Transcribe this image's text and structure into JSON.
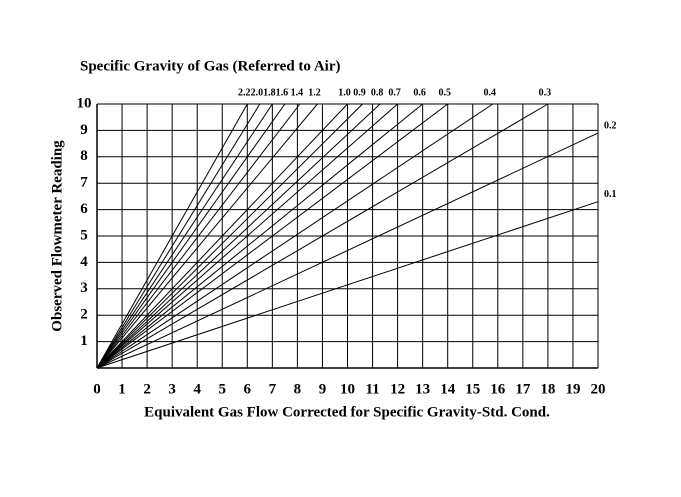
{
  "chart_data": {
    "type": "line",
    "title": "Specific Gravity of Gas (Referred to Air)",
    "x_label": "Equivalent Gas Flow Corrected for Specific Gravity-Std. Cond.",
    "y_label": "Observed Flowmeter Reading",
    "xlim": [
      0,
      20
    ],
    "ylim": [
      0,
      10
    ],
    "xticks": [
      0,
      1,
      2,
      3,
      4,
      5,
      6,
      7,
      8,
      9,
      10,
      11,
      12,
      13,
      14,
      15,
      16,
      17,
      18,
      19,
      20
    ],
    "yticks": [
      1,
      2,
      3,
      4,
      5,
      6,
      7,
      8,
      9,
      10
    ],
    "grid": true,
    "color": "#000000",
    "series": [
      {
        "name": "2.2",
        "x": [
          0,
          6.0
        ],
        "values": [
          0,
          10
        ]
      },
      {
        "name": "2.0",
        "x": [
          0,
          6.5
        ],
        "values": [
          0,
          10
        ]
      },
      {
        "name": "1.8",
        "x": [
          0,
          7.0
        ],
        "values": [
          0,
          10
        ]
      },
      {
        "name": "1.6",
        "x": [
          0,
          7.5
        ],
        "values": [
          0,
          10
        ]
      },
      {
        "name": "1.4",
        "x": [
          0,
          8.1
        ],
        "values": [
          0,
          10
        ]
      },
      {
        "name": "1.2",
        "x": [
          0,
          8.8
        ],
        "values": [
          0,
          10
        ]
      },
      {
        "name": "1.0",
        "x": [
          0,
          10.0
        ],
        "values": [
          0,
          10
        ]
      },
      {
        "name": "0.9",
        "x": [
          0,
          10.6
        ],
        "values": [
          0,
          10
        ]
      },
      {
        "name": "0.8",
        "x": [
          0,
          11.3
        ],
        "values": [
          0,
          10
        ]
      },
      {
        "name": "0.7",
        "x": [
          0,
          12.0
        ],
        "values": [
          0,
          10
        ]
      },
      {
        "name": "0.6",
        "x": [
          0,
          13.0
        ],
        "values": [
          0,
          10
        ]
      },
      {
        "name": "0.5",
        "x": [
          0,
          14.0
        ],
        "values": [
          0,
          10
        ]
      },
      {
        "name": "0.4",
        "x": [
          0,
          15.8
        ],
        "values": [
          0,
          10
        ]
      },
      {
        "name": "0.3",
        "x": [
          0,
          18.0
        ],
        "values": [
          0,
          10
        ]
      },
      {
        "name": "0.2",
        "x": [
          0,
          20
        ],
        "values": [
          0,
          8.9
        ]
      },
      {
        "name": "0.1",
        "x": [
          0,
          20
        ],
        "values": [
          0,
          6.3
        ]
      }
    ]
  }
}
